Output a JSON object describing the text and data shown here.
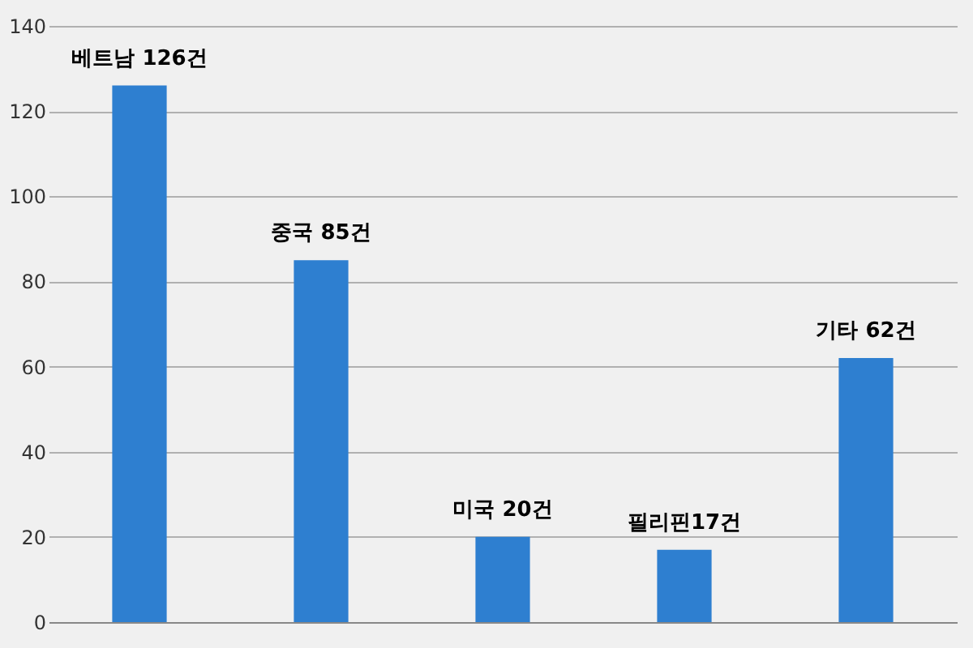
{
  "chart_data": {
    "type": "bar",
    "categories": [
      null,
      null,
      null,
      null,
      null
    ],
    "values": [
      126,
      85,
      20,
      17,
      62
    ],
    "value_labels": [
      "베트남 126건",
      "중국 85건",
      "미국 20건",
      "필리핀17건",
      "기타 62건"
    ],
    "color": "#2e7fd0",
    "ylim": [
      0,
      140
    ],
    "yticks": [
      0,
      20,
      40,
      60,
      80,
      100,
      120,
      140
    ],
    "grid": "y",
    "tick_labels": "y"
  }
}
